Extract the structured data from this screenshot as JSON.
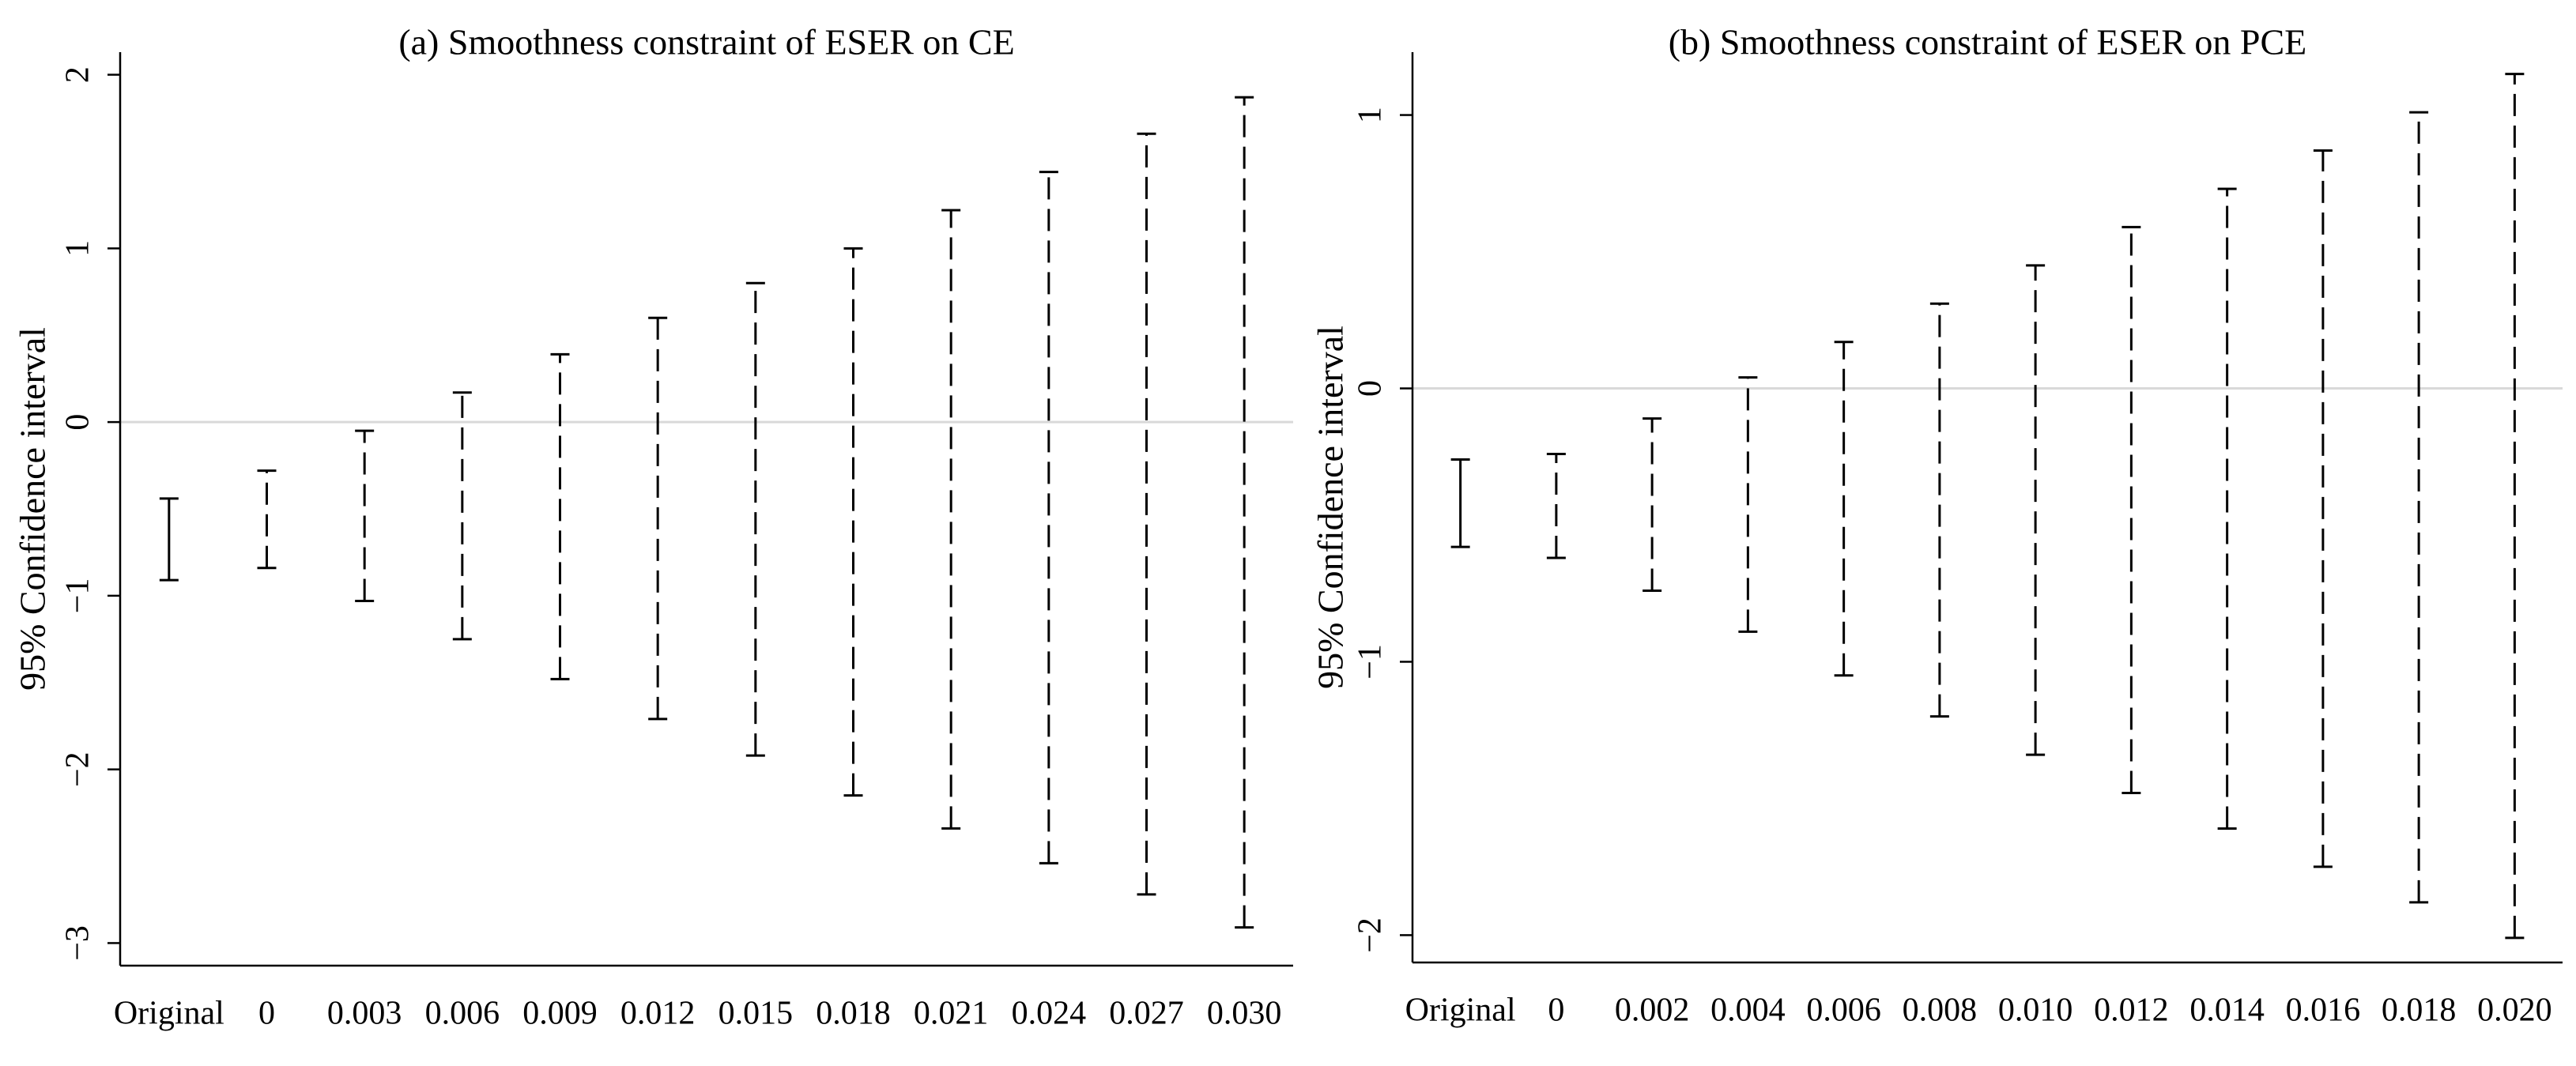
{
  "chart_data": [
    {
      "type": "errorbar",
      "title": "(a) Smoothness constraint of ESER on CE",
      "y_label": "95% Confidence interval",
      "categories": [
        "Original",
        "0",
        "0.003",
        "0.006",
        "0.009",
        "0.012",
        "0.015",
        "0.018",
        "0.021",
        "0.024",
        "0.027",
        "0.030"
      ],
      "lower": [
        -0.91,
        -0.84,
        -1.03,
        -1.25,
        -1.48,
        -1.71,
        -1.92,
        -2.15,
        -2.34,
        -2.54,
        -2.72,
        -2.91
      ],
      "upper": [
        -0.44,
        -0.28,
        -0.05,
        0.17,
        0.39,
        0.6,
        0.8,
        1.0,
        1.22,
        1.44,
        1.66,
        1.87
      ],
      "line_styles": [
        "solid",
        "dashed",
        "dashed",
        "dashed",
        "dashed",
        "dashed",
        "dashed",
        "dashed",
        "dashed",
        "dashed",
        "dashed",
        "dashed"
      ],
      "color": "#000000",
      "hline": 0,
      "hline_color": "#d9d9d9",
      "ylim": [
        -3.13,
        2.13
      ],
      "yticks": [
        {
          "value": -3,
          "label": "−3"
        },
        {
          "value": -2,
          "label": "−2"
        },
        {
          "value": -1,
          "label": "−1"
        },
        0,
        1,
        2
      ]
    },
    {
      "type": "errorbar",
      "title": "(b) Smoothness constraint of ESER on PCE",
      "y_label": "95% Confidence interval",
      "categories": [
        "Original",
        "0",
        "0.002",
        "0.004",
        "0.006",
        "0.008",
        "0.010",
        "0.012",
        "0.014",
        "0.016",
        "0.018",
        "0.020"
      ],
      "lower": [
        -0.58,
        -0.62,
        -0.74,
        -0.89,
        -1.05,
        -1.2,
        -1.34,
        -1.48,
        -1.61,
        -1.75,
        -1.88,
        -2.01
      ],
      "upper": [
        -0.26,
        -0.24,
        -0.11,
        0.04,
        0.17,
        0.31,
        0.45,
        0.59,
        0.73,
        0.87,
        1.01,
        1.15
      ],
      "line_styles": [
        "solid",
        "dashed",
        "dashed",
        "dashed",
        "dashed",
        "dashed",
        "dashed",
        "dashed",
        "dashed",
        "dashed",
        "dashed",
        "dashed"
      ],
      "color": "#000000",
      "hline": 0,
      "hline_color": "#d9d9d9",
      "ylim": [
        -2.1,
        1.23
      ],
      "yticks": [
        {
          "value": -2,
          "label": "−2"
        },
        {
          "value": -1,
          "label": "−1"
        },
        0,
        1
      ]
    }
  ]
}
